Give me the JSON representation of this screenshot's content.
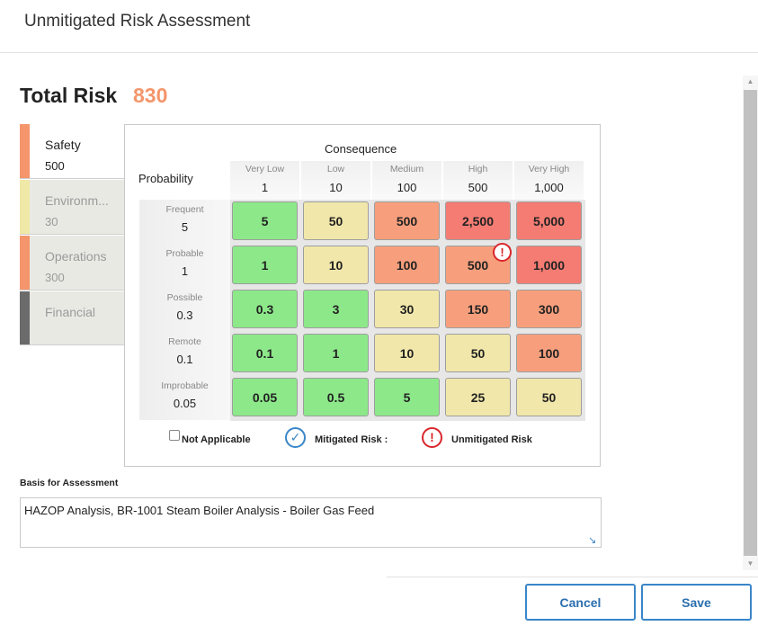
{
  "header": {
    "title": "Unmitigated Risk Assessment"
  },
  "total_risk": {
    "label": "Total Risk",
    "value": "830",
    "color": "#f4956b"
  },
  "tabs": [
    {
      "name": "Safety",
      "value": "500",
      "color": "#f4956b",
      "active": true
    },
    {
      "name": "Environm...",
      "value": "30",
      "color": "#efe8a6",
      "active": false
    },
    {
      "name": "Operations",
      "value": "300",
      "color": "#f4956b",
      "active": false
    },
    {
      "name": "Financial",
      "value": "",
      "color": "#6b6b6b",
      "active": false
    }
  ],
  "matrix": {
    "consequence_label": "Consequence",
    "probability_label": "Probability",
    "columns": [
      {
        "name": "Very Low",
        "value": "1"
      },
      {
        "name": "Low",
        "value": "10"
      },
      {
        "name": "Medium",
        "value": "100"
      },
      {
        "name": "High",
        "value": "500"
      },
      {
        "name": "Very High",
        "value": "1,000"
      }
    ],
    "rows": [
      {
        "name": "Frequent",
        "value": "5",
        "cells": [
          {
            "value": "5",
            "color": "green"
          },
          {
            "value": "50",
            "color": "yellow"
          },
          {
            "value": "500",
            "color": "orange"
          },
          {
            "value": "2,500",
            "color": "red"
          },
          {
            "value": "5,000",
            "color": "red"
          }
        ]
      },
      {
        "name": "Probable",
        "value": "1",
        "cells": [
          {
            "value": "1",
            "color": "green"
          },
          {
            "value": "10",
            "color": "yellow"
          },
          {
            "value": "100",
            "color": "orange"
          },
          {
            "value": "500",
            "color": "orange"
          },
          {
            "value": "1,000",
            "color": "red"
          }
        ]
      },
      {
        "name": "Possible",
        "value": "0.3",
        "cells": [
          {
            "value": "0.3",
            "color": "green"
          },
          {
            "value": "3",
            "color": "green"
          },
          {
            "value": "30",
            "color": "yellow"
          },
          {
            "value": "150",
            "color": "orange"
          },
          {
            "value": "300",
            "color": "orange"
          }
        ]
      },
      {
        "name": "Remote",
        "value": "0.1",
        "cells": [
          {
            "value": "0.1",
            "color": "green"
          },
          {
            "value": "1",
            "color": "green"
          },
          {
            "value": "10",
            "color": "yellow"
          },
          {
            "value": "50",
            "color": "yellow"
          },
          {
            "value": "100",
            "color": "orange"
          }
        ]
      },
      {
        "name": "Improbable",
        "value": "0.05",
        "cells": [
          {
            "value": "0.05",
            "color": "green"
          },
          {
            "value": "0.5",
            "color": "green"
          },
          {
            "value": "5",
            "color": "green"
          },
          {
            "value": "25",
            "color": "yellow"
          },
          {
            "value": "50",
            "color": "yellow"
          }
        ]
      }
    ],
    "selected_cell": {
      "row": "Probable",
      "column": "High"
    },
    "legend": {
      "not_applicable": "Not Applicable",
      "mitigated": "Mitigated Risk :",
      "unmitigated": "Unmitigated Risk",
      "unmitigated_symbol": "!",
      "mitigated_symbol": "✓"
    }
  },
  "basis": {
    "label": "Basis for Assessment",
    "value": "HAZOP Analysis, BR-1001 Steam Boiler Analysis - Boiler Gas Feed"
  },
  "buttons": {
    "cancel": "Cancel",
    "save": "Save"
  },
  "colors": {
    "green": "#8de88a",
    "yellow": "#f1e7aa",
    "orange": "#f79f7c",
    "red": "#f47c73",
    "accent": "#3a86c8"
  }
}
